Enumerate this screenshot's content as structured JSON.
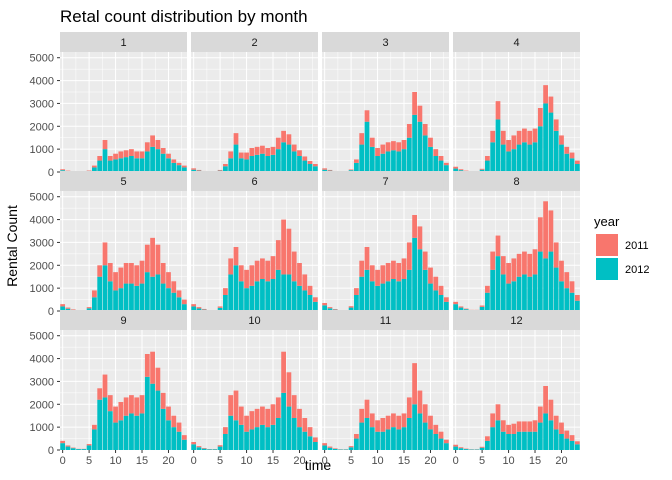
{
  "chart_data": {
    "type": "bar",
    "subtype": "stacked faceted bar",
    "title": "Retal count distribution by month",
    "xlabel": "time",
    "ylabel": "Rental Count",
    "xlim": [
      -0.5,
      23.5
    ],
    "ylim": [
      0,
      5250
    ],
    "x_ticks": [
      0,
      5,
      10,
      15,
      20
    ],
    "y_ticks": [
      0,
      1000,
      2000,
      3000,
      4000,
      5000
    ],
    "grid": true,
    "legend": {
      "title": "year",
      "position": "right",
      "entries": [
        "2011",
        "2012"
      ]
    },
    "colors": {
      "2011": "#F8766D",
      "2012": "#00BFC4",
      "panel_bg": "#EBEBEB",
      "strip_bg": "#D9D9D9",
      "grid": "#FFFFFF"
    },
    "hours": [
      0,
      1,
      2,
      3,
      4,
      5,
      6,
      7,
      8,
      9,
      10,
      11,
      12,
      13,
      14,
      15,
      16,
      17,
      18,
      19,
      20,
      21,
      22,
      23
    ],
    "facets": [
      {
        "month": "1",
        "y2012": [
          80,
          40,
          20,
          10,
          10,
          50,
          200,
          500,
          1000,
          500,
          550,
          600,
          650,
          700,
          600,
          600,
          900,
          1100,
          1000,
          800,
          600,
          400,
          300,
          200
        ],
        "y2011": [
          40,
          20,
          10,
          5,
          5,
          20,
          80,
          200,
          400,
          200,
          250,
          300,
          300,
          300,
          300,
          300,
          400,
          500,
          400,
          250,
          200,
          150,
          100,
          80
        ]
      },
      {
        "month": "2",
        "y2012": [
          100,
          60,
          30,
          10,
          10,
          60,
          250,
          600,
          1200,
          600,
          550,
          700,
          750,
          800,
          700,
          750,
          1000,
          1300,
          1200,
          900,
          700,
          500,
          350,
          250
        ],
        "y2011": [
          60,
          30,
          15,
          5,
          5,
          30,
          100,
          300,
          500,
          250,
          300,
          350,
          350,
          350,
          350,
          350,
          500,
          500,
          450,
          300,
          250,
          180,
          130,
          100
        ]
      },
      {
        "month": "3",
        "y2012": [
          100,
          60,
          30,
          10,
          10,
          80,
          400,
          1200,
          2200,
          1100,
          700,
          800,
          900,
          950,
          900,
          1000,
          1500,
          2500,
          2200,
          1600,
          1100,
          700,
          500,
          300
        ],
        "y2011": [
          60,
          30,
          15,
          5,
          5,
          30,
          150,
          500,
          500,
          400,
          350,
          400,
          400,
          400,
          400,
          400,
          600,
          1000,
          700,
          500,
          400,
          300,
          200,
          100
        ]
      },
      {
        "month": "4",
        "y2012": [
          150,
          80,
          40,
          20,
          20,
          100,
          500,
          1300,
          2300,
          1200,
          900,
          1000,
          1200,
          1300,
          1200,
          1300,
          2000,
          3000,
          2600,
          1800,
          1200,
          800,
          600,
          350
        ],
        "y2011": [
          80,
          40,
          20,
          10,
          10,
          40,
          200,
          500,
          800,
          600,
          500,
          600,
          600,
          600,
          600,
          600,
          800,
          800,
          700,
          500,
          400,
          300,
          250,
          150
        ]
      },
      {
        "month": "5",
        "y2012": [
          200,
          100,
          50,
          20,
          20,
          120,
          600,
          1500,
          2000,
          1300,
          900,
          1000,
          1200,
          1200,
          1100,
          1200,
          1700,
          1500,
          1600,
          1200,
          1000,
          800,
          600,
          300
        ],
        "y2011": [
          100,
          50,
          25,
          10,
          10,
          50,
          300,
          500,
          1000,
          800,
          800,
          900,
          900,
          900,
          900,
          1000,
          1200,
          1700,
          1300,
          900,
          700,
          500,
          300,
          200
        ]
      },
      {
        "month": "6",
        "y2012": [
          200,
          110,
          60,
          30,
          30,
          140,
          700,
          1600,
          2000,
          1300,
          1000,
          1100,
          1300,
          1400,
          1300,
          1400,
          1800,
          1600,
          1600,
          1300,
          1100,
          900,
          700,
          400
        ],
        "y2011": [
          100,
          60,
          30,
          10,
          10,
          60,
          300,
          700,
          800,
          700,
          800,
          900,
          900,
          900,
          900,
          1000,
          1300,
          2400,
          2000,
          1300,
          1000,
          700,
          400,
          200
        ]
      },
      {
        "month": "7",
        "y2012": [
          250,
          120,
          60,
          30,
          30,
          150,
          700,
          1500,
          1800,
          1300,
          1100,
          1200,
          1300,
          1400,
          1300,
          1400,
          1800,
          3200,
          2700,
          1800,
          1200,
          900,
          700,
          400
        ],
        "y2011": [
          100,
          50,
          25,
          10,
          10,
          60,
          300,
          700,
          1000,
          700,
          700,
          800,
          800,
          800,
          800,
          900,
          1200,
          1000,
          1000,
          800,
          700,
          600,
          400,
          200
        ]
      },
      {
        "month": "8",
        "y2012": [
          300,
          150,
          80,
          40,
          40,
          180,
          800,
          1800,
          2400,
          1600,
          1200,
          1300,
          1500,
          1600,
          1500,
          1600,
          2600,
          2300,
          2600,
          1900,
          1300,
          1000,
          800,
          450
        ],
        "y2011": [
          100,
          50,
          25,
          10,
          10,
          60,
          300,
          800,
          900,
          800,
          900,
          1000,
          1000,
          1000,
          1000,
          1100,
          1500,
          2500,
          1800,
          1100,
          900,
          700,
          500,
          250
        ]
      },
      {
        "month": "9",
        "y2012": [
          300,
          150,
          80,
          40,
          40,
          200,
          900,
          2200,
          2300,
          1700,
          1200,
          1300,
          1500,
          1600,
          1500,
          1600,
          3200,
          2900,
          2600,
          1800,
          1300,
          1000,
          800,
          450
        ],
        "y2011": [
          100,
          50,
          25,
          10,
          10,
          60,
          200,
          500,
          1000,
          700,
          700,
          800,
          800,
          800,
          800,
          800,
          1000,
          1400,
          1000,
          700,
          600,
          500,
          400,
          200
        ]
      },
      {
        "month": "10",
        "y2012": [
          250,
          120,
          60,
          30,
          30,
          150,
          700,
          1500,
          1300,
          1100,
          800,
          900,
          1000,
          1100,
          1000,
          1100,
          1400,
          2500,
          1900,
          1400,
          1000,
          800,
          600,
          350
        ],
        "y2011": [
          100,
          50,
          25,
          10,
          10,
          60,
          300,
          900,
          1300,
          800,
          700,
          800,
          800,
          800,
          800,
          900,
          900,
          1800,
          1500,
          1000,
          800,
          600,
          400,
          200
        ]
      },
      {
        "month": "11",
        "y2012": [
          200,
          100,
          50,
          20,
          20,
          120,
          500,
          1200,
          1400,
          1000,
          800,
          800,
          900,
          1000,
          900,
          1000,
          1400,
          2000,
          1600,
          1200,
          900,
          700,
          500,
          300
        ],
        "y2011": [
          100,
          50,
          25,
          10,
          10,
          50,
          200,
          600,
          800,
          600,
          500,
          600,
          600,
          600,
          600,
          600,
          900,
          1800,
          1000,
          800,
          600,
          400,
          300,
          150
        ]
      },
      {
        "month": "12",
        "y2012": [
          150,
          80,
          40,
          20,
          20,
          100,
          400,
          1000,
          1300,
          800,
          700,
          700,
          800,
          800,
          800,
          800,
          1200,
          1600,
          1300,
          900,
          700,
          500,
          400,
          250
        ],
        "y2011": [
          80,
          40,
          20,
          10,
          10,
          40,
          200,
          600,
          700,
          500,
          400,
          450,
          450,
          450,
          450,
          500,
          700,
          1200,
          900,
          600,
          500,
          350,
          250,
          130
        ]
      }
    ]
  }
}
